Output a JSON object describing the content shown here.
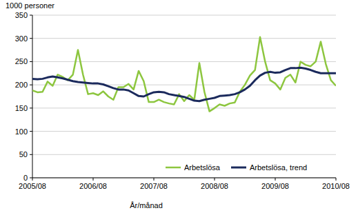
{
  "chart_data": {
    "type": "line",
    "title": "1000 personer",
    "x_label": "År/månad",
    "categories": [
      "2005/08",
      null,
      null,
      null,
      null,
      null,
      null,
      null,
      null,
      null,
      null,
      null,
      "2006/08",
      null,
      null,
      null,
      null,
      null,
      null,
      null,
      null,
      null,
      null,
      null,
      "2007/08",
      null,
      null,
      null,
      null,
      null,
      null,
      null,
      null,
      null,
      null,
      null,
      "2008/08",
      null,
      null,
      null,
      null,
      null,
      null,
      null,
      null,
      null,
      null,
      null,
      "2009/08",
      null,
      null,
      null,
      null,
      null,
      null,
      null,
      null,
      null,
      null,
      null,
      "2010/08"
    ],
    "series": [
      {
        "name": "Arbetslösa",
        "color": "#8dc63f",
        "values": [
          188,
          184,
          185,
          207,
          198,
          222,
          217,
          210,
          222,
          275,
          222,
          180,
          182,
          178,
          186,
          175,
          168,
          195,
          195,
          202,
          190,
          230,
          208,
          163,
          163,
          168,
          163,
          160,
          158,
          180,
          165,
          178,
          168,
          247,
          185,
          143,
          150,
          158,
          155,
          160,
          162,
          185,
          200,
          220,
          232,
          303,
          250,
          210,
          203,
          190,
          215,
          222,
          205,
          250,
          243,
          240,
          250,
          293,
          245,
          210,
          198
        ]
      },
      {
        "name": "Arbetslösa, trend",
        "color": "#1b2a5c",
        "values": [
          213,
          212,
          213,
          216,
          218,
          216,
          214,
          211,
          208,
          206,
          205,
          204,
          203,
          203,
          201,
          197,
          193,
          190,
          190,
          188,
          182,
          176,
          175,
          180,
          184,
          185,
          184,
          180,
          178,
          176,
          174,
          170,
          166,
          165,
          168,
          170,
          172,
          176,
          177,
          178,
          180,
          184,
          190,
          198,
          210,
          220,
          226,
          228,
          226,
          227,
          232,
          236,
          236,
          237,
          235,
          232,
          228,
          225,
          225,
          225,
          225
        ]
      }
    ],
    "ylim": [
      0,
      350
    ],
    "yticks": [
      0,
      50,
      100,
      150,
      200,
      250,
      300,
      350
    ],
    "grid": true,
    "legend": "lower right"
  }
}
